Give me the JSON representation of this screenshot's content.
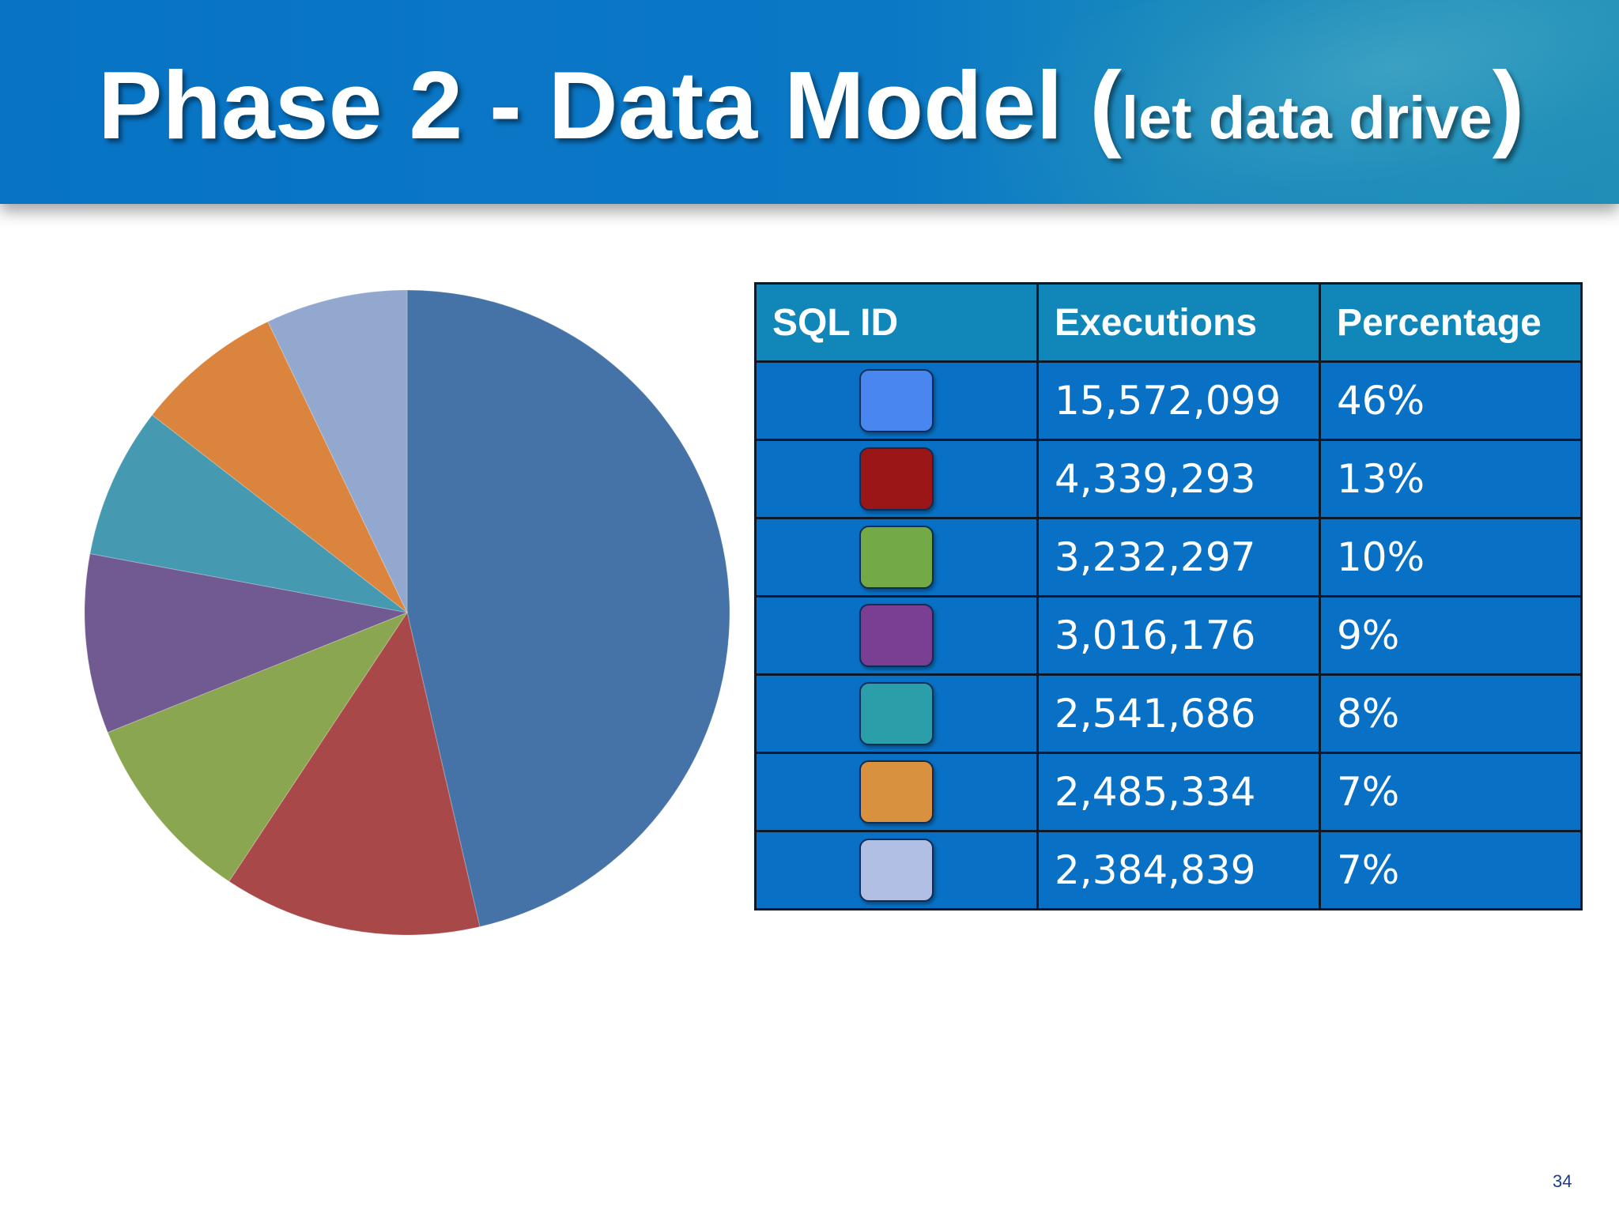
{
  "slide": {
    "title_main": "Phase 2 - Data Model (",
    "title_sub": "let data drive",
    "title_close": ")",
    "page_number": "34"
  },
  "table": {
    "headers": [
      "SQL ID",
      "Executions",
      "Percentage"
    ],
    "rows": [
      {
        "color": "#4a86f0",
        "executions": "15,572,099",
        "percentage": "46%"
      },
      {
        "color": "#9b1717",
        "executions": "4,339,293",
        "percentage": "13%"
      },
      {
        "color": "#74aa45",
        "executions": "3,232,297",
        "percentage": "10%"
      },
      {
        "color": "#7a3e93",
        "executions": "3,016,176",
        "percentage": "9%"
      },
      {
        "color": "#2a9ea9",
        "executions": "2,541,686",
        "percentage": "8%"
      },
      {
        "color": "#d8913e",
        "executions": "2,485,334",
        "percentage": "7%"
      },
      {
        "color": "#b0bfe3",
        "executions": "2,384,839",
        "percentage": "7%"
      }
    ]
  },
  "chart_data": {
    "type": "pie",
    "values": [
      15572099,
      4339293,
      3232297,
      3016176,
      2541686,
      2485334,
      2384839
    ],
    "colors": [
      "#4673a7",
      "#a84848",
      "#8ba650",
      "#715a91",
      "#4599b1",
      "#db843d",
      "#93a8cf"
    ],
    "start": "12 o'clock",
    "direction": "clockwise"
  }
}
